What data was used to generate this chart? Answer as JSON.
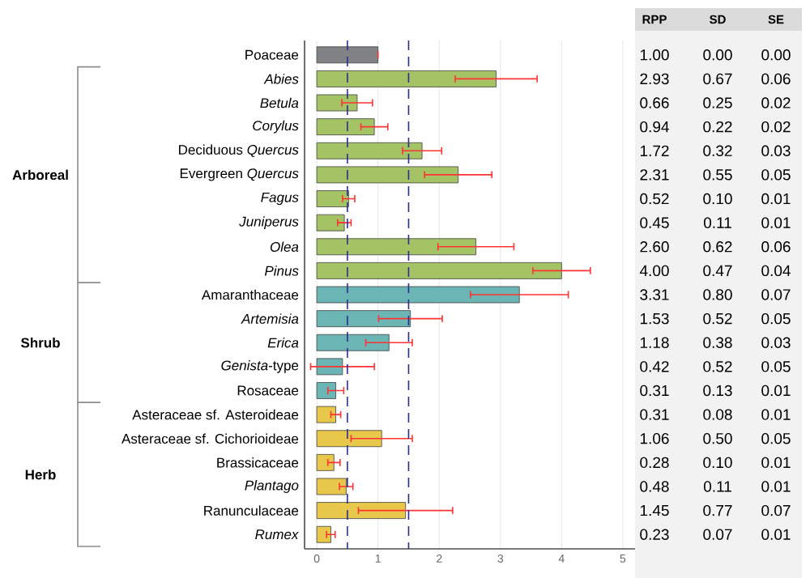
{
  "chart_data": {
    "type": "bar",
    "orientation": "horizontal",
    "categories": [
      "Poaceae",
      "*Abies*",
      "*Betula*",
      "*Corylus*",
      "Deciduous *Quercus*",
      "Evergreen *Quercus*",
      "*Fagus*",
      "*Juniperus*",
      "*Olea*",
      "*Pinus*",
      "Amaranthaceae",
      "*Artemisia*",
      "*Erica*",
      "*Genista*-type",
      "Rosaceae",
      "Asteraceae sf. Asteroideae",
      "Asteraceae sf. Cichorioideae",
      "Brassicaceae",
      "*Plantago*",
      "Ranunculaceae",
      "*Rumex*"
    ],
    "values": [
      1.0,
      2.93,
      0.66,
      0.94,
      1.72,
      2.31,
      0.52,
      0.45,
      2.6,
      4.0,
      3.31,
      1.53,
      1.18,
      0.42,
      0.31,
      0.31,
      1.06,
      0.28,
      0.48,
      1.45,
      0.23
    ],
    "errors": [
      0.0,
      0.67,
      0.25,
      0.22,
      0.32,
      0.55,
      0.1,
      0.11,
      0.62,
      0.47,
      0.8,
      0.52,
      0.38,
      0.52,
      0.13,
      0.08,
      0.5,
      0.1,
      0.11,
      0.77,
      0.07
    ],
    "colors": [
      "#808285",
      "#a4c364",
      "#a4c364",
      "#a4c364",
      "#a4c364",
      "#a4c364",
      "#a4c364",
      "#a4c364",
      "#a4c364",
      "#a4c364",
      "#6bb5b4",
      "#6bb5b4",
      "#6bb5b4",
      "#6bb5b4",
      "#6bb5b4",
      "#e8c84a",
      "#e8c84a",
      "#e8c84a",
      "#e8c84a",
      "#e8c84a",
      "#e8c84a"
    ],
    "xlim": [
      -0.2,
      5.2
    ],
    "xticks": [
      0,
      1,
      2,
      3,
      4,
      5
    ],
    "grid": "x",
    "ref_lines": [
      {
        "axis": "x",
        "value": 0.5,
        "color": "#2b2f8c",
        "line_style": "dashed"
      },
      {
        "axis": "x",
        "value": 1.5,
        "color": "#2b2f8c",
        "line_style": "dashed"
      }
    ],
    "annotations": [
      "Arboreal",
      "Shrub",
      "Herb",
      "RPP",
      "SD",
      "SE",
      "1.00",
      "2.93",
      "0.66",
      "0.94",
      "1.72",
      "2.31",
      "0.52",
      "0.45",
      "2.60",
      "4.00",
      "3.31",
      "1.53",
      "1.18",
      "0.42",
      "0.31",
      "0.31",
      "1.06",
      "0.28",
      "0.48",
      "1.45",
      "0.23",
      "0.00",
      "0.67",
      "0.25",
      "0.22",
      "0.32",
      "0.55",
      "0.10",
      "0.11",
      "0.62",
      "0.47",
      "0.80",
      "0.52",
      "0.38",
      "0.52",
      "0.13",
      "0.08",
      "0.50",
      "0.10",
      "0.11",
      "0.77",
      "0.07",
      "0.00",
      "0.06",
      "0.02",
      "0.02",
      "0.03",
      "0.05",
      "0.01",
      "0.01",
      "0.06",
      "0.04",
      "0.07",
      "0.05",
      "0.03",
      "0.05",
      "0.01",
      "0.01",
      "0.05",
      "0.01",
      "0.01",
      "0.07",
      "0.01"
    ]
  }
}
